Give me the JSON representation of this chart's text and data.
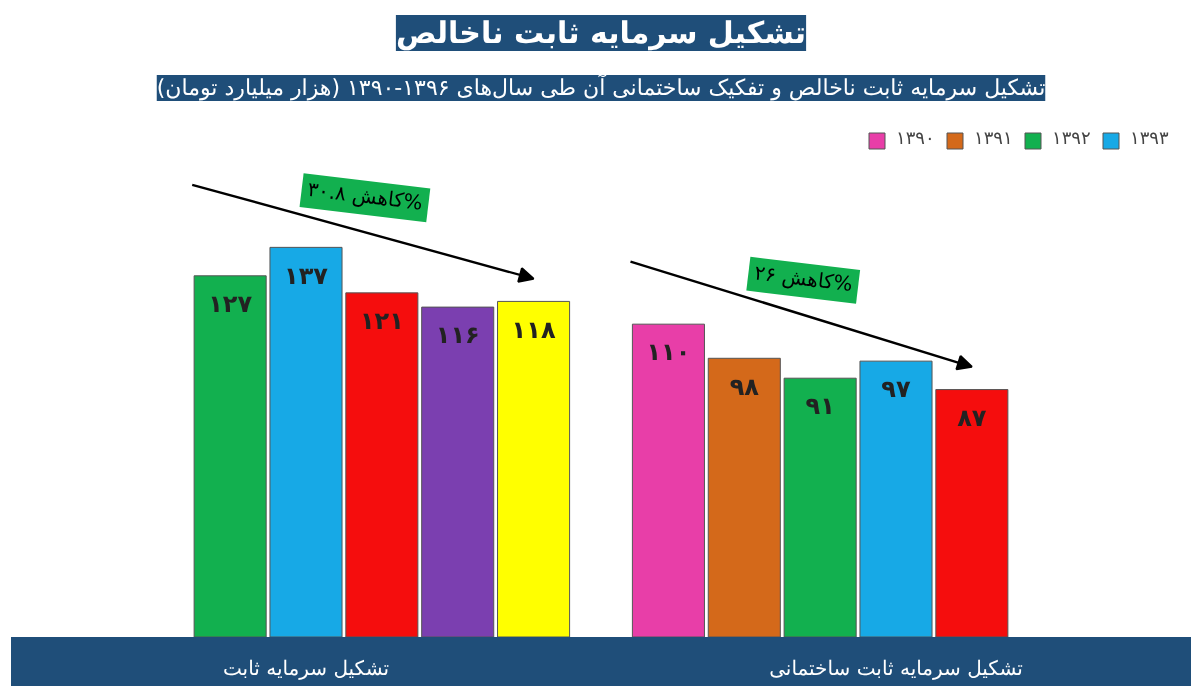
{
  "chart_data": {
    "type": "bar",
    "title": "تشکیل سرمایه ثابت ناخالص",
    "subtitle": "تشکیل سرمایه ثابت ناخالص و تفکیک ساختمانی آن طی سال‌های ۱۳۹۶-۱۳۹۰ (هزار میلیارد تومان)",
    "categories": [
      "تشکیل سرمایه ثابت",
      "تشکیل سرمایه ثابت ساختمانی"
    ],
    "series": [
      {
        "name": "۱۳۹۰",
        "color": "#e83ea8",
        "values": [
          null,
          110
        ],
        "value_labels": [
          null,
          "۱۱۰"
        ]
      },
      {
        "name": "۱۳۹۱",
        "color": "#d4691a",
        "values": [
          null,
          98
        ],
        "value_labels": [
          null,
          "۹۸"
        ]
      },
      {
        "name": "۱۳۹۲",
        "color": "#12b04f",
        "values": [
          127,
          91
        ],
        "value_labels": [
          "۱۲۷",
          "۹۱"
        ]
      },
      {
        "name": "۱۳۹۳",
        "color": "#17a9e6",
        "values": [
          137,
          97
        ],
        "value_labels": [
          "۱۳۷",
          "۹۷"
        ]
      },
      {
        "color": "#f50d0d",
        "values": [
          121,
          87
        ],
        "value_labels": [
          "۱۲۱",
          "۸۷"
        ]
      },
      {
        "color": "#7b3fb0",
        "values": [
          116,
          null
        ],
        "value_labels": [
          "۱۱۶",
          null
        ]
      },
      {
        "color": "#ffff00",
        "values": [
          118,
          null
        ],
        "value_labels": [
          "۱۱۸",
          null
        ]
      }
    ],
    "legend": "top right",
    "annotations": [
      "کاهش ۳۰.۸%",
      "کاهش ۲۶%"
    ]
  }
}
